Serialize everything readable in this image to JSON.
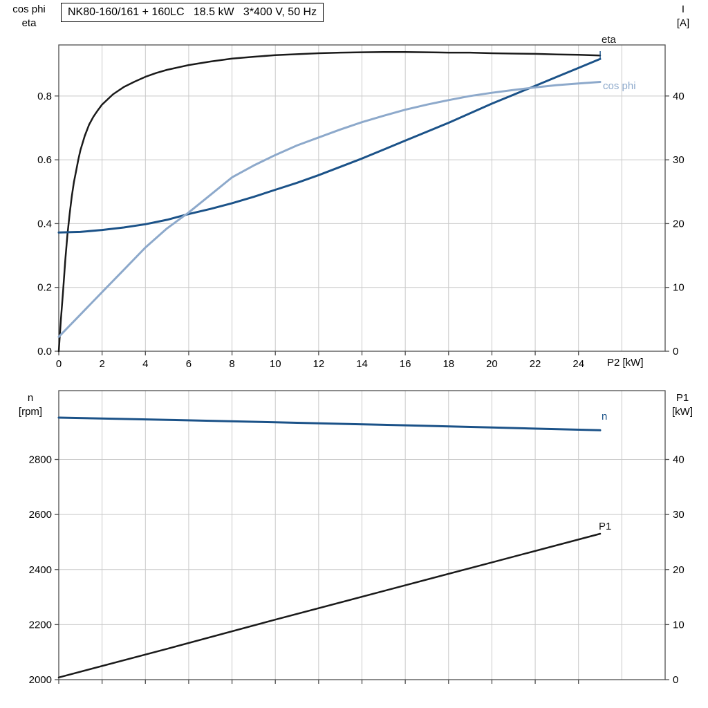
{
  "title": "NK80-160/161 + 160LC   18.5 kW   3*400 V, 50 Hz",
  "colors": {
    "curve_black": "#1a1a1a",
    "curve_dark_blue": "#1b5288",
    "curve_light_blue": "#8da9cb",
    "grid": "#c9c9c9",
    "frame": "#4d4d4d",
    "background": "#ffffff"
  },
  "chart_data": [
    {
      "type": "line",
      "id": "top-panel",
      "xlabel": "P2 [kW]",
      "left_axis_title": [
        "cos phi",
        "eta"
      ],
      "right_axis_title": [
        "I",
        "[A]"
      ],
      "x_domain": [
        0,
        28
      ],
      "left_domain": [
        0,
        0.96
      ],
      "right_domain": [
        0,
        48
      ],
      "x_grid": [
        2,
        4,
        6,
        8,
        10,
        12,
        14,
        16,
        18,
        20,
        22,
        24,
        26
      ],
      "y_grid": [
        0.2,
        0.4,
        0.6,
        0.8
      ],
      "x_ticks": {
        "values": [
          0,
          2,
          4,
          6,
          8,
          10,
          12,
          14,
          16,
          18,
          20,
          22,
          24
        ],
        "labels": [
          "0",
          "2",
          "4",
          "6",
          "8",
          "10",
          "12",
          "14",
          "16",
          "18",
          "20",
          "22",
          "24"
        ],
        "show_labels": true
      },
      "left_ticks": {
        "values": [
          0,
          0.2,
          0.4,
          0.6,
          0.8
        ],
        "labels": [
          "0.0",
          "0.2",
          "0.4",
          "0.6",
          "0.8"
        ]
      },
      "right_ticks": {
        "values": [
          0,
          10,
          20,
          30,
          40
        ],
        "labels": [
          "0",
          "10",
          "20",
          "30",
          "40"
        ]
      },
      "series": [
        {
          "name": "eta",
          "label": "eta",
          "axis": "left",
          "color": "#1a1a1a",
          "stroke_width": 2.5,
          "points": [
            [
              0,
              0
            ],
            [
              0.1,
              0.1
            ],
            [
              0.2,
              0.19
            ],
            [
              0.3,
              0.285
            ],
            [
              0.4,
              0.365
            ],
            [
              0.5,
              0.43
            ],
            [
              0.6,
              0.485
            ],
            [
              0.7,
              0.53
            ],
            [
              0.8,
              0.565
            ],
            [
              0.9,
              0.6
            ],
            [
              1.0,
              0.63
            ],
            [
              1.2,
              0.675
            ],
            [
              1.4,
              0.71
            ],
            [
              1.6,
              0.735
            ],
            [
              1.8,
              0.755
            ],
            [
              2.0,
              0.773
            ],
            [
              2.5,
              0.805
            ],
            [
              3.0,
              0.828
            ],
            [
              3.5,
              0.845
            ],
            [
              4.0,
              0.86
            ],
            [
              4.5,
              0.872
            ],
            [
              5.0,
              0.882
            ],
            [
              6.0,
              0.897
            ],
            [
              7.0,
              0.908
            ],
            [
              8.0,
              0.917
            ],
            [
              9.0,
              0.923
            ],
            [
              10,
              0.928
            ],
            [
              11,
              0.931
            ],
            [
              12,
              0.934
            ],
            [
              13,
              0.936
            ],
            [
              14,
              0.937
            ],
            [
              15,
              0.938
            ],
            [
              16,
              0.938
            ],
            [
              17,
              0.937
            ],
            [
              18,
              0.936
            ],
            [
              19,
              0.936
            ],
            [
              20,
              0.934
            ],
            [
              21,
              0.933
            ],
            [
              22,
              0.932
            ],
            [
              23,
              0.93
            ],
            [
              24,
              0.929
            ],
            [
              25,
              0.927
            ]
          ]
        },
        {
          "name": "I",
          "label": "I",
          "axis": "right",
          "color": "#1b5288",
          "stroke_width": 3,
          "points": [
            [
              0,
              18.6
            ],
            [
              1,
              18.7
            ],
            [
              2,
              19.0
            ],
            [
              3,
              19.4
            ],
            [
              4,
              19.9
            ],
            [
              5,
              20.6
            ],
            [
              6,
              21.5
            ],
            [
              7,
              22.3
            ],
            [
              8,
              23.2
            ],
            [
              9,
              24.2
            ],
            [
              10,
              25.3
            ],
            [
              11,
              26.4
            ],
            [
              12,
              27.6
            ],
            [
              13,
              28.9
            ],
            [
              14,
              30.2
            ],
            [
              15,
              31.6
            ],
            [
              16,
              33.0
            ],
            [
              17,
              34.4
            ],
            [
              18,
              35.8
            ],
            [
              19,
              37.3
            ],
            [
              20,
              38.8
            ],
            [
              21,
              40.2
            ],
            [
              22,
              41.6
            ],
            [
              23,
              43.0
            ],
            [
              24,
              44.4
            ],
            [
              25,
              45.8
            ]
          ]
        },
        {
          "name": "cos phi",
          "label": "cos phi",
          "axis": "left",
          "color": "#8da9cb",
          "stroke_width": 3,
          "points": [
            [
              0,
              0.045
            ],
            [
              1,
              0.115
            ],
            [
              2,
              0.185
            ],
            [
              3,
              0.255
            ],
            [
              4,
              0.325
            ],
            [
              5,
              0.385
            ],
            [
              6,
              0.435
            ],
            [
              7,
              0.49
            ],
            [
              8,
              0.545
            ],
            [
              9,
              0.582
            ],
            [
              10,
              0.615
            ],
            [
              11,
              0.645
            ],
            [
              12,
              0.67
            ],
            [
              13,
              0.695
            ],
            [
              14,
              0.718
            ],
            [
              15,
              0.738
            ],
            [
              16,
              0.757
            ],
            [
              17,
              0.773
            ],
            [
              18,
              0.787
            ],
            [
              19,
              0.8
            ],
            [
              20,
              0.81
            ],
            [
              21,
              0.819
            ],
            [
              22,
              0.827
            ],
            [
              23,
              0.834
            ],
            [
              24,
              0.839
            ],
            [
              25,
              0.844
            ]
          ]
        }
      ]
    },
    {
      "type": "line",
      "id": "bottom-panel",
      "xlabel": "",
      "left_axis_title": [
        "n",
        "[rpm]"
      ],
      "right_axis_title": [
        "P1",
        "[kW]"
      ],
      "x_domain": [
        0,
        28
      ],
      "left_domain": [
        2000,
        3050
      ],
      "right_domain": [
        0,
        52.5
      ],
      "x_grid": [
        2,
        4,
        6,
        8,
        10,
        12,
        14,
        16,
        18,
        20,
        22,
        24,
        26
      ],
      "y_grid": [
        2200,
        2400,
        2600,
        2800
      ],
      "x_ticks": {
        "values": [
          0,
          2,
          4,
          6,
          8,
          10,
          12,
          14,
          16,
          18,
          20,
          22,
          24
        ],
        "labels": [],
        "show_labels": false
      },
      "left_ticks": {
        "values": [
          2000,
          2200,
          2400,
          2600,
          2800
        ],
        "labels": [
          "2000",
          "2200",
          "2400",
          "2600",
          "2800"
        ]
      },
      "right_ticks": {
        "values": [
          0,
          10,
          20,
          30,
          40
        ],
        "labels": [
          "0",
          "10",
          "20",
          "30",
          "40"
        ]
      },
      "series": [
        {
          "name": "n",
          "label": "n",
          "axis": "left",
          "color": "#1b5288",
          "stroke_width": 3,
          "points": [
            [
              0,
              2952
            ],
            [
              5,
              2944
            ],
            [
              10,
              2935
            ],
            [
              15,
              2926
            ],
            [
              20,
              2916
            ],
            [
              25,
              2906
            ]
          ]
        },
        {
          "name": "P1",
          "label": "P1",
          "axis": "right",
          "color": "#1a1a1a",
          "stroke_width": 2.5,
          "points": [
            [
              0,
              0.4
            ],
            [
              5,
              5.6
            ],
            [
              10,
              10.9
            ],
            [
              15,
              16.1
            ],
            [
              20,
              21.3
            ],
            [
              25,
              26.5
            ]
          ]
        }
      ]
    }
  ]
}
